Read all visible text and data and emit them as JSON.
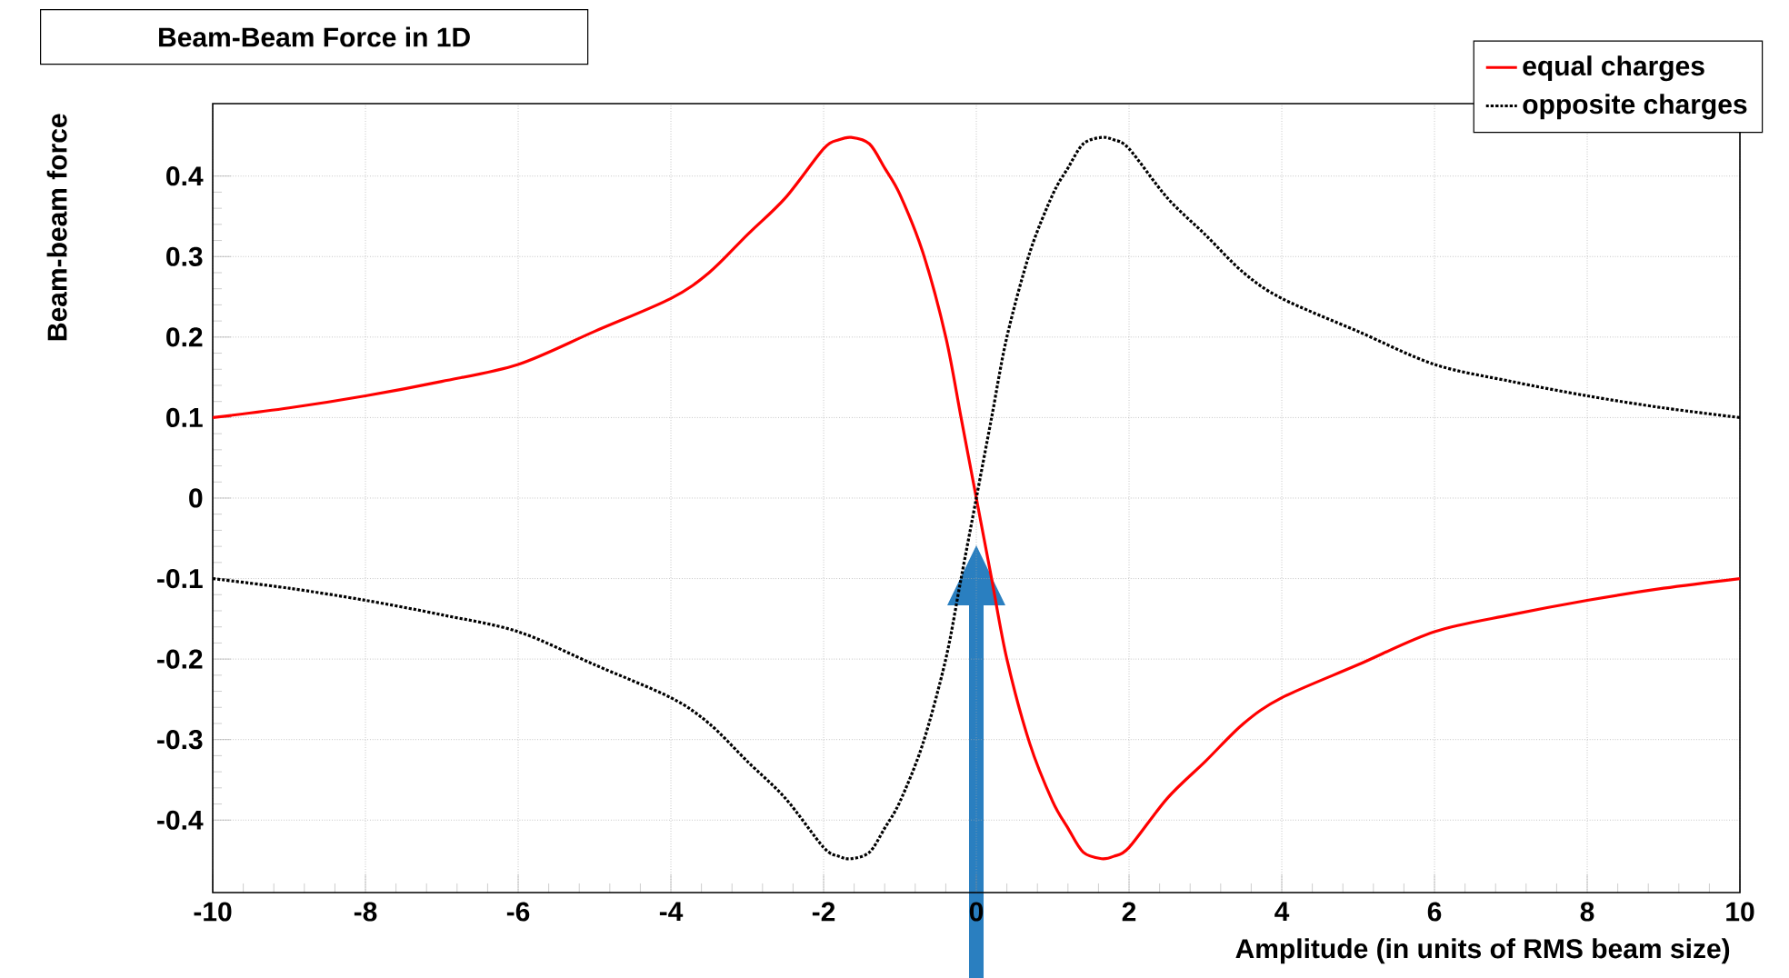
{
  "chart_data": {
    "type": "line",
    "title": "Beam-Beam Force in 1D",
    "xlabel": "Amplitude (in units of RMS beam size)",
    "ylabel": "Beam-beam force",
    "x": [
      -10,
      -9,
      -8,
      -7,
      -6,
      -5,
      -4,
      -3.5,
      -3,
      -2.5,
      -2,
      -1.8,
      -1.64,
      -1.4,
      -1.2,
      -1,
      -0.7,
      -0.4,
      -0.2,
      0,
      0.2,
      0.4,
      0.7,
      1,
      1.2,
      1.4,
      1.64,
      1.8,
      2,
      2.5,
      3,
      3.5,
      4,
      5,
      6,
      7,
      8,
      9,
      10
    ],
    "series": [
      {
        "name": "equal charges",
        "color": "#ff0000",
        "line_style": "solid",
        "values": [
          0.1,
          0.112,
          0.127,
          0.145,
          0.166,
          0.207,
          0.248,
          0.28,
          0.327,
          0.373,
          0.434,
          0.445,
          0.448,
          0.44,
          0.41,
          0.377,
          0.305,
          0.2,
          0.1,
          0,
          -0.1,
          -0.2,
          -0.305,
          -0.377,
          -0.41,
          -0.44,
          -0.448,
          -0.445,
          -0.434,
          -0.373,
          -0.327,
          -0.28,
          -0.248,
          -0.207,
          -0.166,
          -0.145,
          -0.127,
          -0.112,
          -0.1
        ]
      },
      {
        "name": "opposite charges",
        "color": "#000000",
        "line_style": "dotted",
        "values": [
          -0.1,
          -0.112,
          -0.127,
          -0.145,
          -0.166,
          -0.207,
          -0.248,
          -0.28,
          -0.327,
          -0.373,
          -0.434,
          -0.445,
          -0.448,
          -0.44,
          -0.41,
          -0.377,
          -0.305,
          -0.2,
          -0.1,
          0,
          0.1,
          0.2,
          0.305,
          0.377,
          0.41,
          0.44,
          0.448,
          0.445,
          0.434,
          0.373,
          0.327,
          0.28,
          0.248,
          0.207,
          0.166,
          0.145,
          0.127,
          0.112,
          0.1
        ]
      }
    ],
    "xlim": [
      -10,
      10
    ],
    "ylim": [
      -0.49,
      0.49
    ],
    "xticks": [
      -10,
      -8,
      -6,
      -4,
      -2,
      0,
      2,
      4,
      6,
      8,
      10
    ],
    "yticks": [
      {
        "value": -0.4,
        "label": "-0.4"
      },
      {
        "value": -0.3,
        "label": "-0.3"
      },
      {
        "value": -0.2,
        "label": "-0.2"
      },
      {
        "value": -0.1,
        "label": "-0.1"
      },
      0,
      {
        "value": 0.1,
        "label": "0.1"
      },
      {
        "value": 0.2,
        "label": "0.2"
      },
      {
        "value": 0.3,
        "label": "0.3"
      },
      {
        "value": 0.4,
        "label": "0.4"
      }
    ],
    "grid": true,
    "legend": "top right",
    "marker": "none"
  }
}
